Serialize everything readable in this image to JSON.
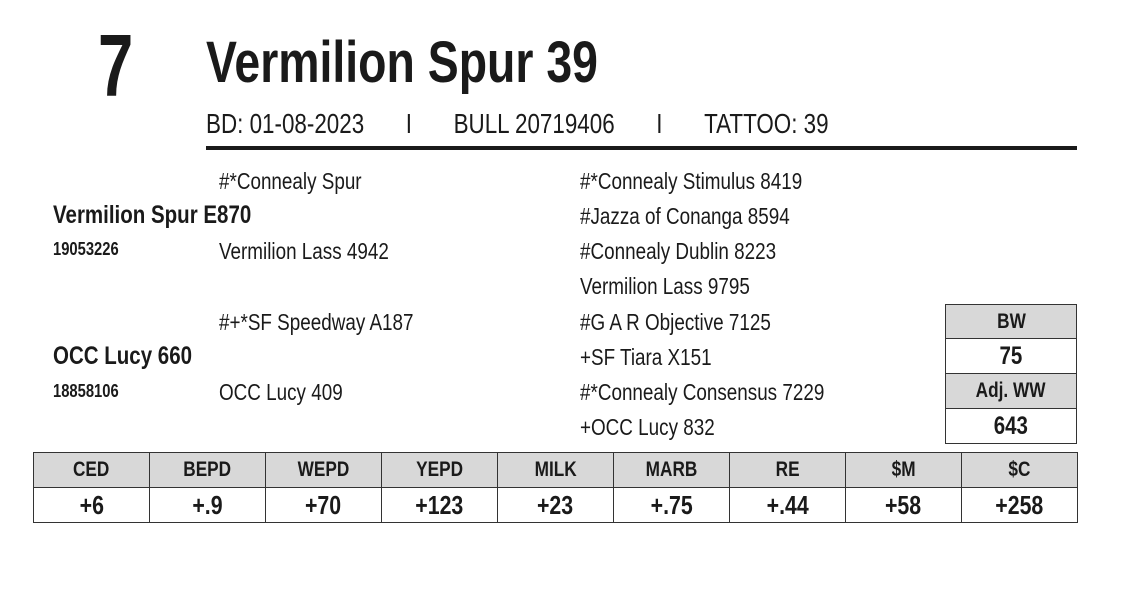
{
  "lot": "7",
  "name": "Vermilion Spur 39",
  "meta": {
    "birth_date": "BD: 01-08-2023",
    "separator": "I",
    "reg": "BULL 20719406",
    "tattoo": "TATTOO: 39"
  },
  "pedigree": {
    "sire": {
      "name": "Vermilion Spur E870",
      "reg": "19053226"
    },
    "sire_sire": "#*Connealy Spur",
    "sire_dam": "Vermilion Lass 4942",
    "dam": {
      "name": "OCC Lucy 660",
      "reg": "18858106"
    },
    "dam_sire": "#+*SF Speedway A187",
    "dam_dam": "OCC Lucy 409",
    "gen3": [
      "#*Connealy Stimulus 8419",
      "#Jazza of Conanga 8594",
      "#Connealy Dublin 8223",
      "Vermilion Lass 9795",
      "#G A R Objective 7125",
      "+SF Tiara X151",
      "#*Connealy Consensus 7229",
      "+OCC Lucy 832"
    ]
  },
  "performance": {
    "bw_label": "BW",
    "bw_value": "75",
    "adj_ww_label": "Adj. WW",
    "adj_ww_value": "643"
  },
  "epds": {
    "headers": [
      "CED",
      "BEPD",
      "WEPD",
      "YEPD",
      "MILK",
      "MARB",
      "RE",
      "$M",
      "$C"
    ],
    "values": [
      "+6",
      "+.9",
      "+70",
      "+123",
      "+23",
      "+.75",
      "+.44",
      "+58",
      "+258"
    ]
  }
}
